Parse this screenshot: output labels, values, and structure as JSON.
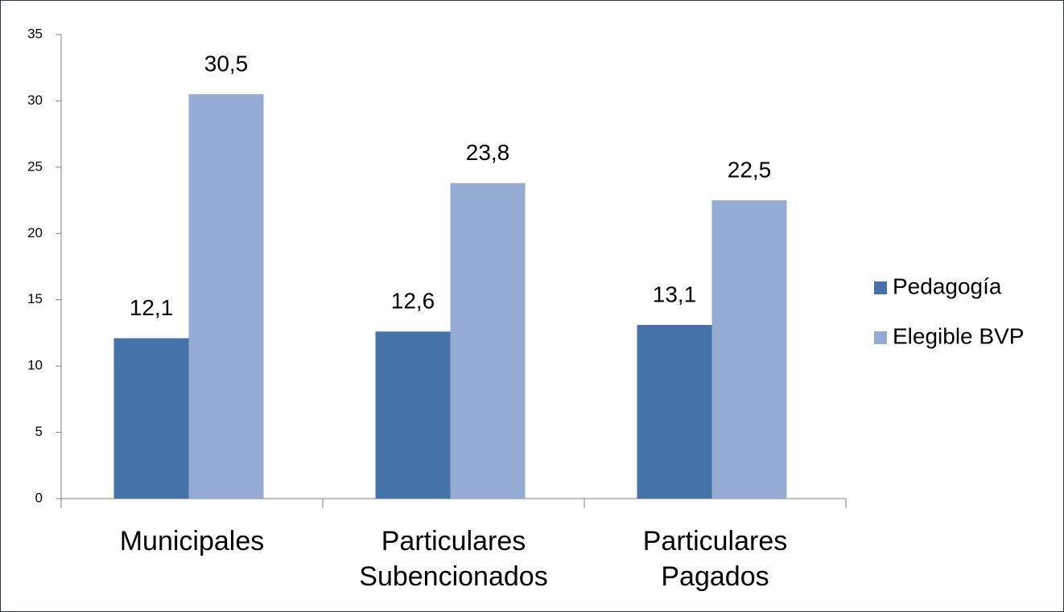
{
  "chart_data": {
    "type": "bar",
    "categories": [
      "Municipales",
      "Particulares Subencionados",
      "Particulares Pagados"
    ],
    "series": [
      {
        "name": "Pedagogía",
        "color": "#4572a7",
        "values": [
          12.1,
          12.6,
          13.1
        ],
        "value_labels": [
          "12,1",
          "12,6",
          "13,1"
        ]
      },
      {
        "name": "Elegible BVP",
        "color": "#95abd3",
        "values": [
          30.5,
          23.8,
          22.5
        ],
        "value_labels": [
          "30,5",
          "23,8",
          "22,5"
        ]
      }
    ],
    "ylim": [
      0,
      35
    ],
    "yticks": [
      0,
      5,
      10,
      15,
      20,
      25,
      30,
      35
    ],
    "grid": false,
    "legend": "right"
  }
}
